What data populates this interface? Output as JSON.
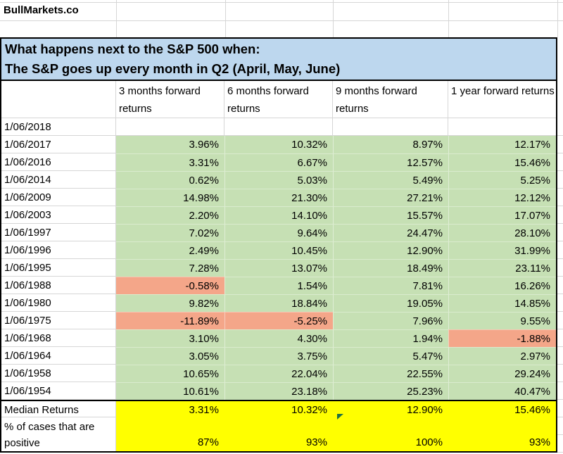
{
  "brand": "BullMarkets.co",
  "title": {
    "line1": "What happens next to the S&P 500 when:",
    "line2": "The S&P goes up every month in Q2 (April, May, June)"
  },
  "table": {
    "columns": [
      "3 months forward returns",
      "6 months forward returns",
      "9 months forward returns",
      "1 year forward returns"
    ],
    "rows": [
      {
        "date": "1/06/2018",
        "values": [
          "",
          "",
          "",
          ""
        ]
      },
      {
        "date": "1/06/2017",
        "values": [
          "3.96%",
          "10.32%",
          "8.97%",
          "12.17%"
        ]
      },
      {
        "date": "1/06/2016",
        "values": [
          "3.31%",
          "6.67%",
          "12.57%",
          "15.46%"
        ]
      },
      {
        "date": "1/06/2014",
        "values": [
          "0.62%",
          "5.03%",
          "5.49%",
          "5.25%"
        ]
      },
      {
        "date": "1/06/2009",
        "values": [
          "14.98%",
          "21.30%",
          "27.21%",
          "12.12%"
        ]
      },
      {
        "date": "1/06/2003",
        "values": [
          "2.20%",
          "14.10%",
          "15.57%",
          "17.07%"
        ]
      },
      {
        "date": "1/06/1997",
        "values": [
          "7.02%",
          "9.64%",
          "24.47%",
          "28.10%"
        ]
      },
      {
        "date": "1/06/1996",
        "values": [
          "2.49%",
          "10.45%",
          "12.90%",
          "31.99%"
        ]
      },
      {
        "date": "1/06/1995",
        "values": [
          "7.28%",
          "13.07%",
          "18.49%",
          "23.11%"
        ]
      },
      {
        "date": "1/06/1988",
        "values": [
          "-0.58%",
          "1.54%",
          "7.81%",
          "16.26%"
        ]
      },
      {
        "date": "1/06/1980",
        "values": [
          "9.82%",
          "18.84%",
          "19.05%",
          "14.85%"
        ]
      },
      {
        "date": "1/06/1975",
        "values": [
          "-11.89%",
          "-5.25%",
          "7.96%",
          "9.55%"
        ]
      },
      {
        "date": "1/06/1968",
        "values": [
          "3.10%",
          "4.30%",
          "1.94%",
          "-1.88%"
        ]
      },
      {
        "date": "1/06/1964",
        "values": [
          "3.05%",
          "3.75%",
          "5.47%",
          "2.97%"
        ]
      },
      {
        "date": "1/06/1958",
        "values": [
          "10.65%",
          "22.04%",
          "22.55%",
          "29.24%"
        ]
      },
      {
        "date": "1/06/1954",
        "values": [
          "10.61%",
          "23.18%",
          "25.23%",
          "40.47%"
        ]
      }
    ],
    "summary": {
      "median_label": "Median Returns",
      "median_values": [
        "3.31%",
        "10.32%",
        "12.90%",
        "15.46%"
      ],
      "pct_label_line1": "% of cases that are",
      "pct_label_line2": "positive",
      "pct_values": [
        "87%",
        "93%",
        "100%",
        "93%"
      ]
    }
  },
  "colors": {
    "positive_fill": "#c6e0b4",
    "negative_fill": "#f4a689",
    "summary_fill": "#ffff00",
    "title_fill": "#bdd7ee",
    "gridline": "#d6d6d6",
    "border": "#000000",
    "flag_green": "#1f7145"
  }
}
